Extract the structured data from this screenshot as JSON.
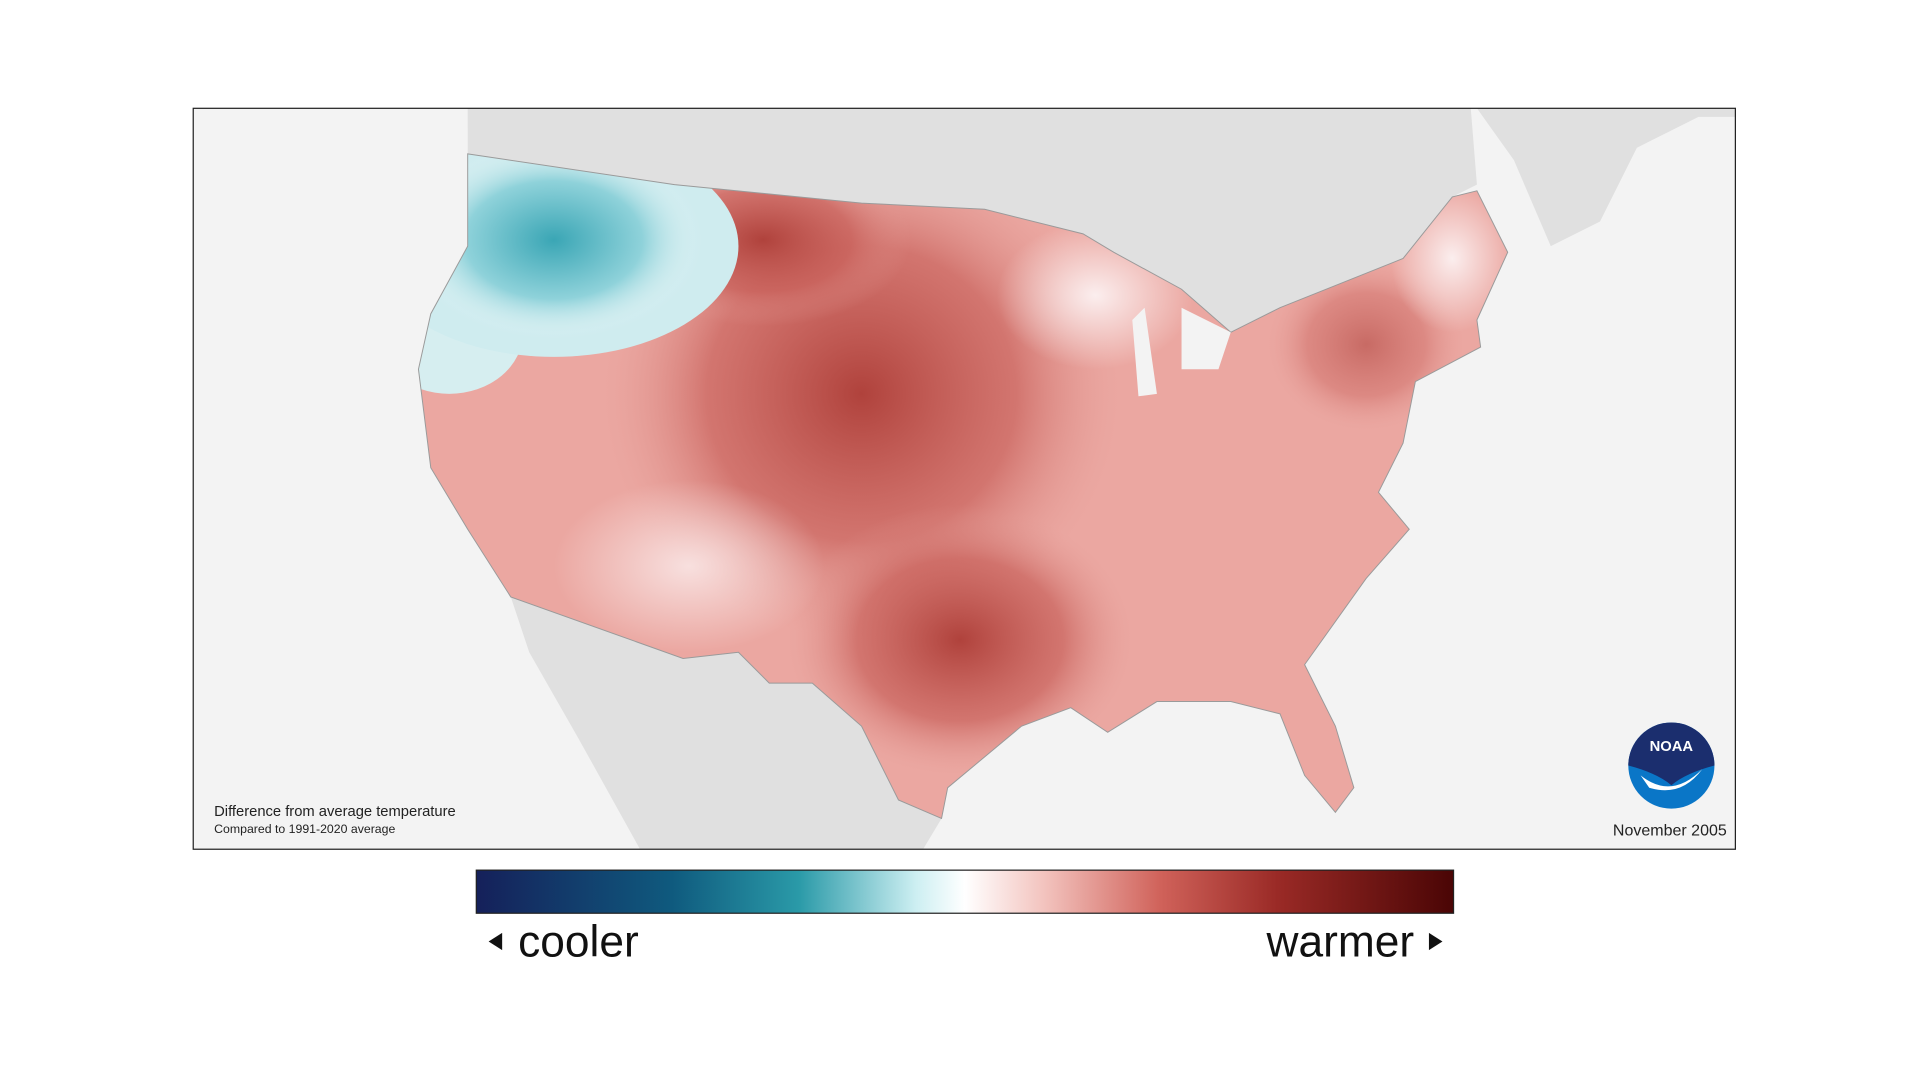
{
  "map": {
    "caption": {
      "title": "Difference from average temperature",
      "subtitle": "Compared to 1991-2020 average"
    },
    "date": "November 2005",
    "logo": "NOAA",
    "legend": {
      "low": "cooler",
      "high": "warmer"
    }
  }
}
